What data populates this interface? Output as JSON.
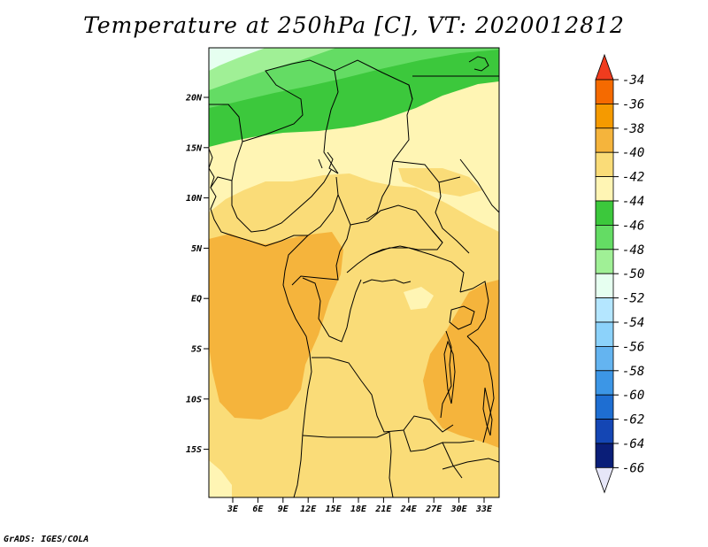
{
  "title": "Temperature at 250hPa [C], VT: 2020012812",
  "credit": "GrADS: IGES/COLA",
  "map": {
    "lat_labels": [
      "20N",
      "15N",
      "10N",
      "5N",
      "EQ",
      "5S",
      "10S",
      "15S"
    ],
    "lon_labels": [
      "3E",
      "6E",
      "9E",
      "12E",
      "15E",
      "18E",
      "21E",
      "24E",
      "27E",
      "30E",
      "33E"
    ],
    "region": "Central Africa"
  },
  "colorbar": {
    "labels": [
      "-34",
      "-36",
      "-38",
      "-40",
      "-42",
      "-44",
      "-46",
      "-48",
      "-50",
      "-52",
      "-54",
      "-56",
      "-58",
      "-60",
      "-62",
      "-64",
      "-66"
    ],
    "colors": [
      "#f03c1e",
      "#f56a00",
      "#f59a00",
      "#f5b43c",
      "#fadc78",
      "#fff5b4",
      "#3cc83c",
      "#64dc64",
      "#a0f096",
      "#e6fff0",
      "#b4e6ff",
      "#8cd2fa",
      "#64b4f0",
      "#3c96e6",
      "#1e6ed2",
      "#1446b4",
      "#0a1e78",
      "#e6e6f8"
    ]
  },
  "field_colors": {
    "c_minus38": "#f5b43c",
    "c_minus40": "#fadc78",
    "c_minus42": "#fff5b4",
    "c_minus44": "#3cc83c",
    "c_minus46": "#64dc64",
    "c_minus48": "#a0f096",
    "c_minus50": "#e6fff0"
  }
}
